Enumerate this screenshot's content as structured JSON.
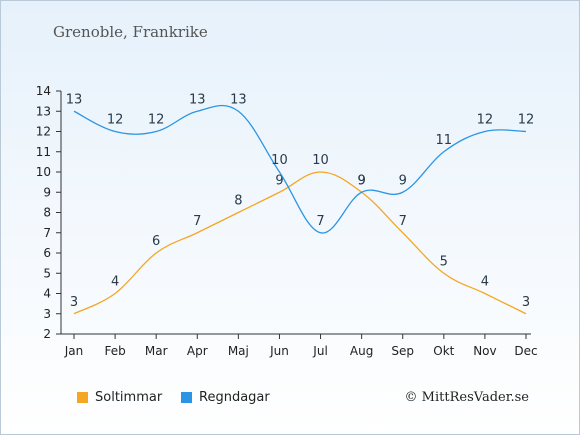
{
  "title": "Grenoble, Frankrike",
  "copyright": "© MittResVader.se",
  "colors": {
    "sun": "#f5a623",
    "rain": "#2b95e5"
  },
  "chart_data": {
    "type": "line",
    "categories": [
      "Jan",
      "Feb",
      "Mar",
      "Apr",
      "Maj",
      "Jun",
      "Jul",
      "Aug",
      "Sep",
      "Okt",
      "Nov",
      "Dec"
    ],
    "ylim": [
      2,
      14
    ],
    "yticks": [
      2,
      3,
      4,
      5,
      6,
      7,
      8,
      9,
      10,
      11,
      12,
      13,
      14
    ],
    "grid": false,
    "legend_position": "bottom-left",
    "series": [
      {
        "name": "Soltimmar",
        "color": "#f5a623",
        "values": [
          3,
          4,
          6,
          7,
          8,
          9,
          10,
          9,
          7,
          5,
          4,
          3
        ]
      },
      {
        "name": "Regndagar",
        "color": "#2b95e5",
        "values": [
          13,
          12,
          12,
          13,
          13,
          10,
          7,
          9,
          9,
          11,
          12,
          12
        ]
      }
    ]
  }
}
